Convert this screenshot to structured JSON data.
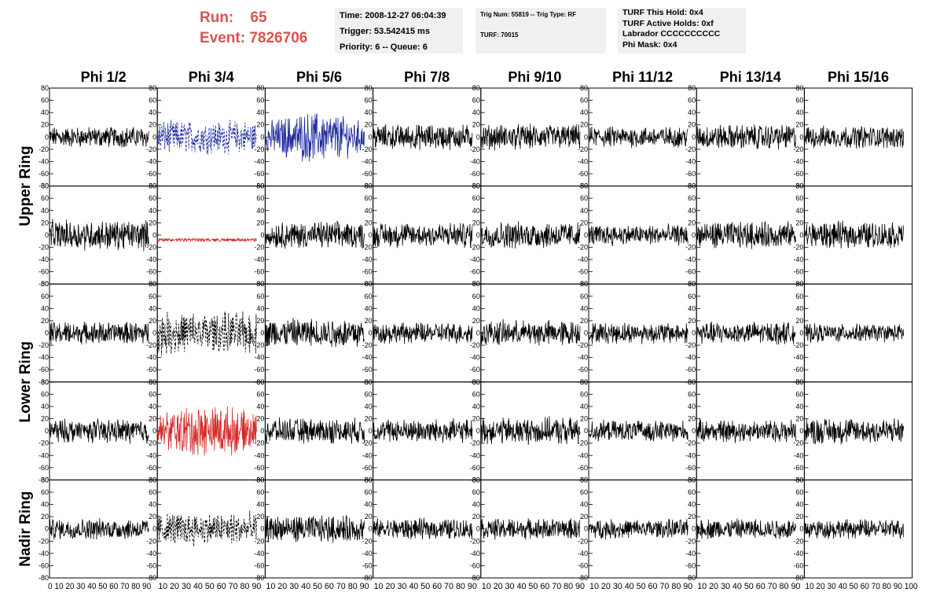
{
  "header": {
    "run_label": "Run:",
    "run_value": "65",
    "event_label": "Event:",
    "event_value": "7826706",
    "time": "Time: 2008-12-27 06:04:39",
    "trigger": "Trigger: 53.542415 ms",
    "priority": "Priority: 6 -- Queue: 6",
    "trig_num": "Trig Num: 55819 -- Trig Type: RF",
    "turf": "TURF: 70015",
    "turf_this_hold": "TURF This Hold: 0x4",
    "turf_active_holds": "TURF Active Holds: 0xf",
    "labrador": "Labrador CCCCCCCCCC",
    "phi_mask": "Phi Mask: 0x4"
  },
  "colors": {
    "header_text": "#d9534f",
    "info_bg": "#f0f0f0",
    "blue_trace": "#1f2a9e",
    "red_trace": "#d42a2a",
    "black_trace": "#000000"
  },
  "chart_data": {
    "type": "line",
    "layout": "grid of waveforms, 8 columns x 5 rows",
    "columns": [
      "Phi 1/2",
      "Phi 3/4",
      "Phi 5/6",
      "Phi 7/8",
      "Phi 9/10",
      "Phi 11/12",
      "Phi 13/14",
      "Phi 15/16"
    ],
    "ring_labels": [
      "Upper Ring",
      "Lower Ring",
      "Nadir Ring"
    ],
    "xlim": [
      0,
      100
    ],
    "ylim": [
      -80,
      80
    ],
    "x_ticks": [
      "0",
      "10",
      "20",
      "30",
      "40",
      "50",
      "60",
      "70",
      "80",
      "90",
      "100"
    ],
    "y_ticks": [
      "80",
      "60",
      "40",
      "20",
      "0",
      "-20",
      "-40",
      "-60",
      "-80"
    ],
    "x_tick_label_runs": [
      "0 10 20 30 40 50 60 70 80 90",
      "10 20 30 40 50 60 70 80 90",
      "10 20 30 40 50 60 70 80 90",
      "10 20 30 40 50 60 70 80 90",
      "10 20 30 40 50 60 70 80 90",
      "10 20 30 40 50 60 70 80 90",
      "10 20 30 40 50 60 70 80 90",
      "10 20 30 40 50 60 70 80 90 100"
    ],
    "traces": [
      [
        {
          "style": "black-solid",
          "amp": 14
        },
        {
          "style": "blue-dashed",
          "amp": 22
        },
        {
          "style": "blue-solid",
          "amp": 28
        },
        {
          "style": "black-solid",
          "amp": 17
        },
        {
          "style": "black-solid",
          "amp": 17
        },
        {
          "style": "black-solid",
          "amp": 14
        },
        {
          "style": "black-solid",
          "amp": 17
        },
        {
          "style": "black-solid",
          "amp": 15
        }
      ],
      [
        {
          "style": "black-solid",
          "amp": 20
        },
        {
          "style": "red-flat",
          "amp": 3
        },
        {
          "style": "black-solid",
          "amp": 18
        },
        {
          "style": "black-solid",
          "amp": 17
        },
        {
          "style": "black-solid",
          "amp": 18
        },
        {
          "style": "black-solid",
          "amp": 14
        },
        {
          "style": "black-solid",
          "amp": 18
        },
        {
          "style": "black-solid",
          "amp": 18
        }
      ],
      [
        {
          "style": "black-solid",
          "amp": 15
        },
        {
          "style": "black-dashed",
          "amp": 28
        },
        {
          "style": "black-solid",
          "amp": 20
        },
        {
          "style": "black-solid",
          "amp": 14
        },
        {
          "style": "black-solid",
          "amp": 17
        },
        {
          "style": "black-solid",
          "amp": 14
        },
        {
          "style": "black-solid",
          "amp": 15
        },
        {
          "style": "black-solid",
          "amp": 12
        }
      ],
      [
        {
          "style": "black-solid",
          "amp": 16
        },
        {
          "style": "red-solid",
          "amp": 30
        },
        {
          "style": "black-solid",
          "amp": 17
        },
        {
          "style": "black-solid",
          "amp": 16
        },
        {
          "style": "black-solid",
          "amp": 18
        },
        {
          "style": "black-solid",
          "amp": 14
        },
        {
          "style": "black-solid",
          "amp": 15
        },
        {
          "style": "black-solid",
          "amp": 18
        }
      ],
      [
        {
          "style": "black-solid",
          "amp": 14
        },
        {
          "style": "black-dashed",
          "amp": 22
        },
        {
          "style": "black-solid",
          "amp": 18
        },
        {
          "style": "black-solid",
          "amp": 14
        },
        {
          "style": "black-solid",
          "amp": 14
        },
        {
          "style": "black-solid",
          "amp": 13
        },
        {
          "style": "black-solid",
          "amp": 14
        },
        {
          "style": "black-solid",
          "amp": 13
        }
      ]
    ]
  }
}
